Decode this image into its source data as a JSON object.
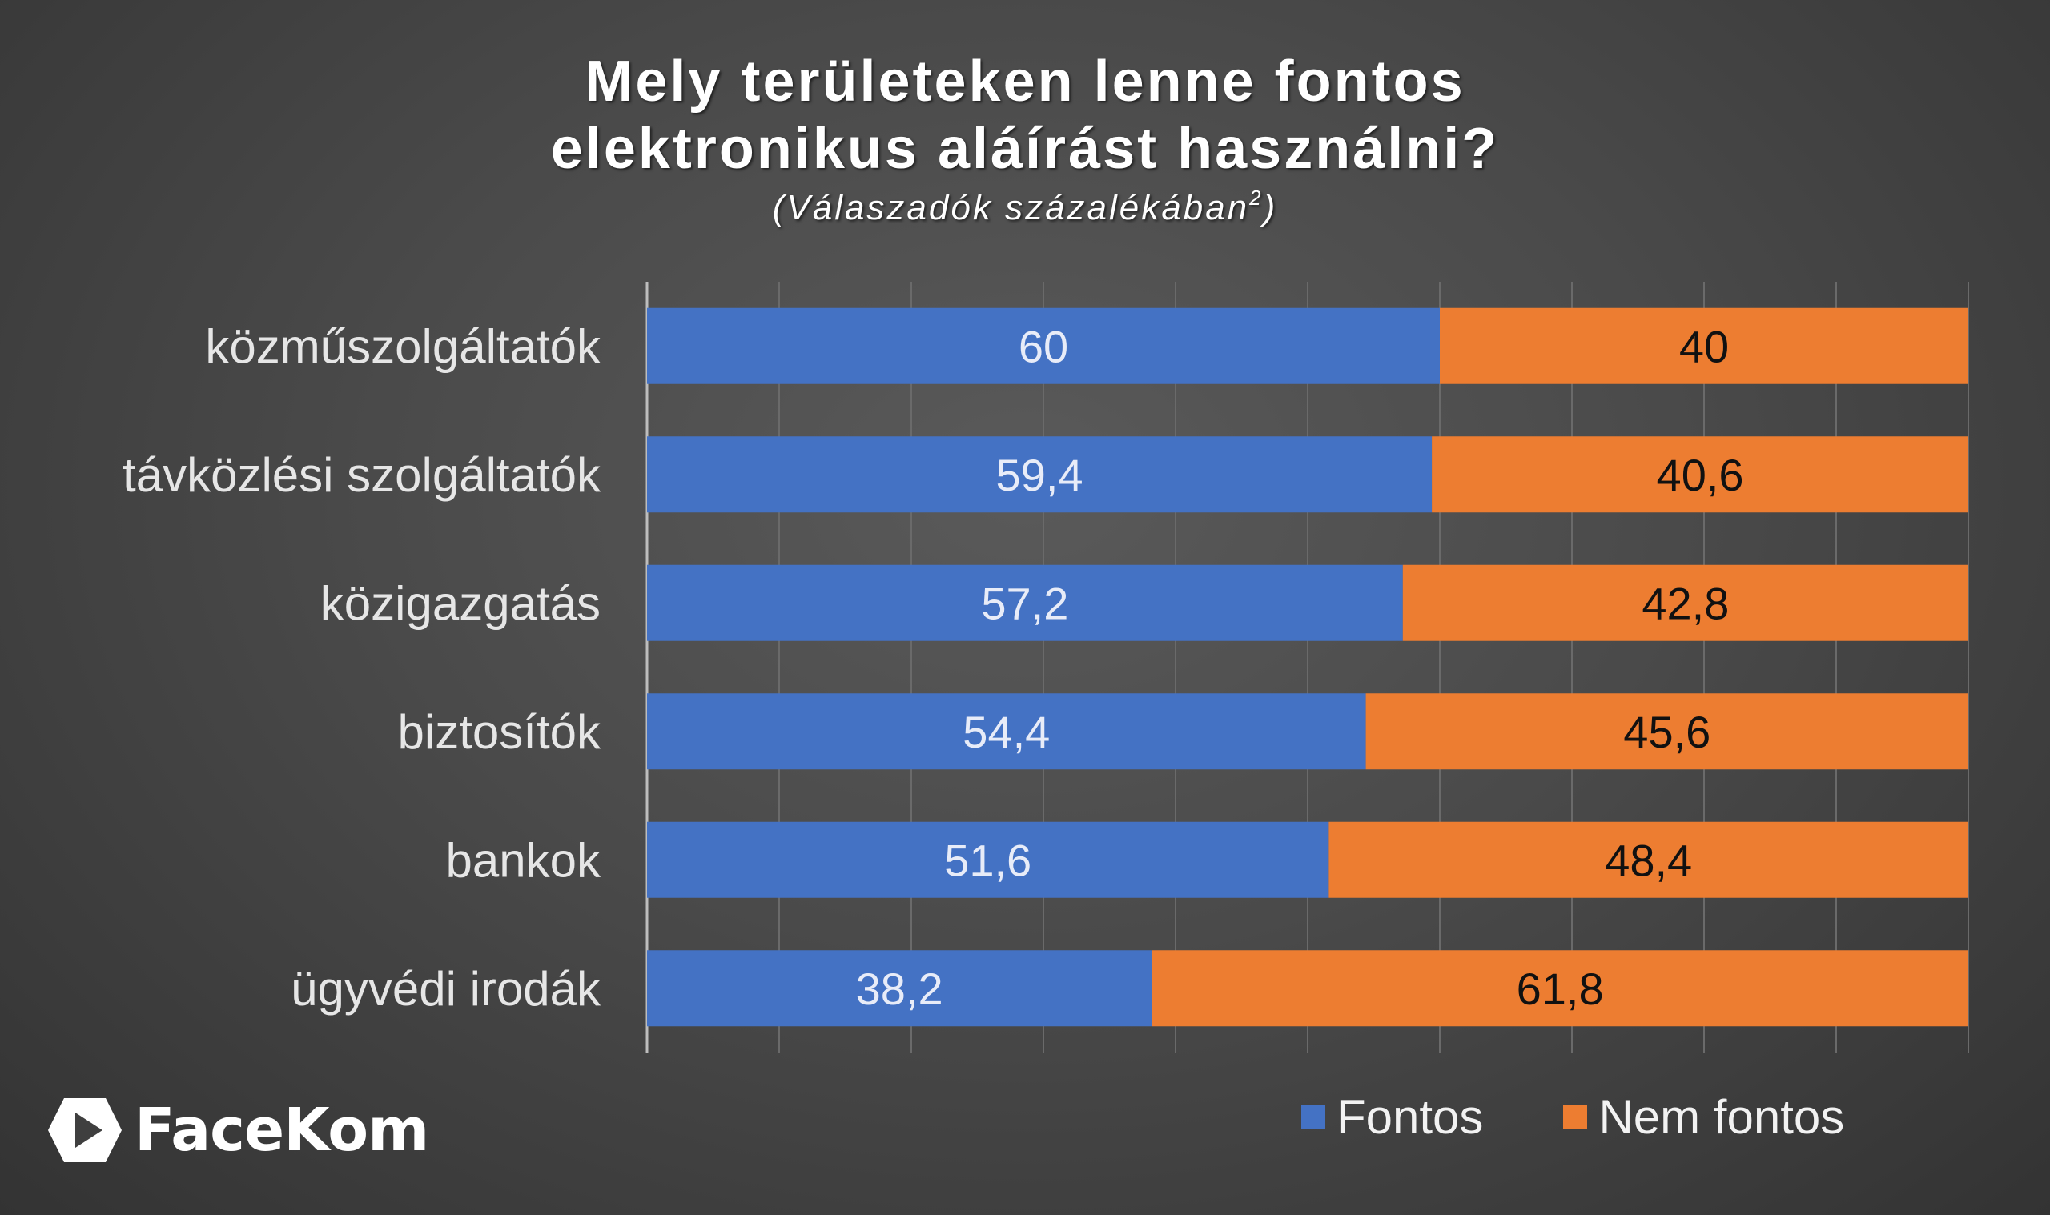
{
  "chart_data": {
    "type": "bar",
    "orientation": "horizontal",
    "stacked": true,
    "title_line1": "Mely területeken lenne fontos",
    "title_line2": "elektronikus aláírást használni?",
    "subtitle": "(Válaszadók százalékában",
    "subtitle_sup": "2",
    "subtitle_end": ")",
    "categories": [
      "közműszolgáltatók",
      "távközlési szolgáltatók",
      "közigazgatás",
      "biztosítók",
      "bankok",
      "ügyvédi irodák"
    ],
    "series": [
      {
        "name": "Fontos",
        "color": "#4472C4",
        "values": [
          60,
          59.4,
          57.2,
          54.4,
          51.6,
          38.2
        ],
        "labels": [
          "60",
          "59,4",
          "57,2",
          "54,4",
          "51,6",
          "38,2"
        ]
      },
      {
        "name": "Nem fontos",
        "color": "#ED7D31",
        "values": [
          40,
          40.6,
          42.8,
          45.6,
          48.4,
          61.8
        ],
        "labels": [
          "40",
          "40,6",
          "42,8",
          "45,6",
          "48,4",
          "61,8"
        ]
      }
    ],
    "xlim": [
      0,
      100
    ],
    "grid": true,
    "legend_position": "bottom-right"
  },
  "brand": {
    "name": "FaceKom",
    "icon": "play-icon"
  }
}
